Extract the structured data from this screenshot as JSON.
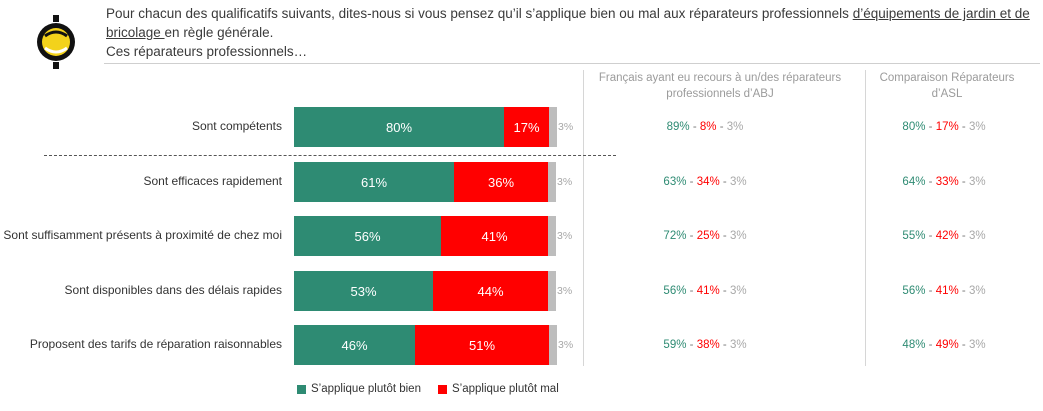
{
  "header": {
    "question_part1": "Pour chacun des qualificatifs suivants, dites-nous si vous pensez qu’il s’applique bien ou mal aux réparateurs professionnels ",
    "question_underlined": "d’équipements de jardin et de bricolage ",
    "question_part2": "en règle générale.",
    "subtitle": "Ces réparateurs professionnels…"
  },
  "columns": {
    "abj_header": "Français ayant eu recours à un/des réparateurs professionnels d’ABJ",
    "asl_header": "Comparaison Réparateurs d’ASL"
  },
  "colors": {
    "good": "#2e8b73",
    "bad": "#ff0000",
    "na": "#bdbdbd"
  },
  "chart_data": {
    "type": "bar",
    "orientation": "horizontal",
    "stacked": true,
    "categories": [
      "Sont compétents",
      "Sont efficaces rapidement",
      "Sont suffisamment présents à proximité de chez moi",
      "Sont disponibles dans des délais rapides",
      "Proposent des tarifs de réparation raisonnables"
    ],
    "series": [
      {
        "name": "S’applique plutôt bien",
        "values": [
          80,
          61,
          56,
          53,
          46
        ],
        "labels": [
          "80%",
          "61%",
          "56%",
          "53%",
          "46%"
        ]
      },
      {
        "name": "S’applique plutôt mal",
        "values": [
          17,
          36,
          41,
          44,
          51
        ],
        "labels": [
          "17%",
          "36%",
          "41%",
          "44%",
          "51%"
        ]
      },
      {
        "values": [
          3,
          3,
          3,
          3,
          3
        ],
        "labels": [
          "3%",
          "3%",
          "3%",
          "3%",
          "3%"
        ]
      }
    ],
    "xlim": [
      0,
      100
    ],
    "legend_position": "bottom",
    "comparisons": {
      "abj": [
        {
          "good": "89%",
          "bad": "8%",
          "na": "3%"
        },
        {
          "good": "63%",
          "bad": "34%",
          "na": "3%"
        },
        {
          "good": "72%",
          "bad": "25%",
          "na": "3%"
        },
        {
          "good": "56%",
          "bad": "41%",
          "na": "3%"
        },
        {
          "good": "59%",
          "bad": "38%",
          "na": "3%"
        }
      ],
      "asl": [
        {
          "good": "80%",
          "bad": "17%",
          "na": "3%"
        },
        {
          "good": "64%",
          "bad": "33%",
          "na": "3%"
        },
        {
          "good": "55%",
          "bad": "42%",
          "na": "3%"
        },
        {
          "good": "56%",
          "bad": "41%",
          "na": "3%"
        },
        {
          "good": "48%",
          "bad": "49%",
          "na": "3%"
        }
      ]
    }
  }
}
